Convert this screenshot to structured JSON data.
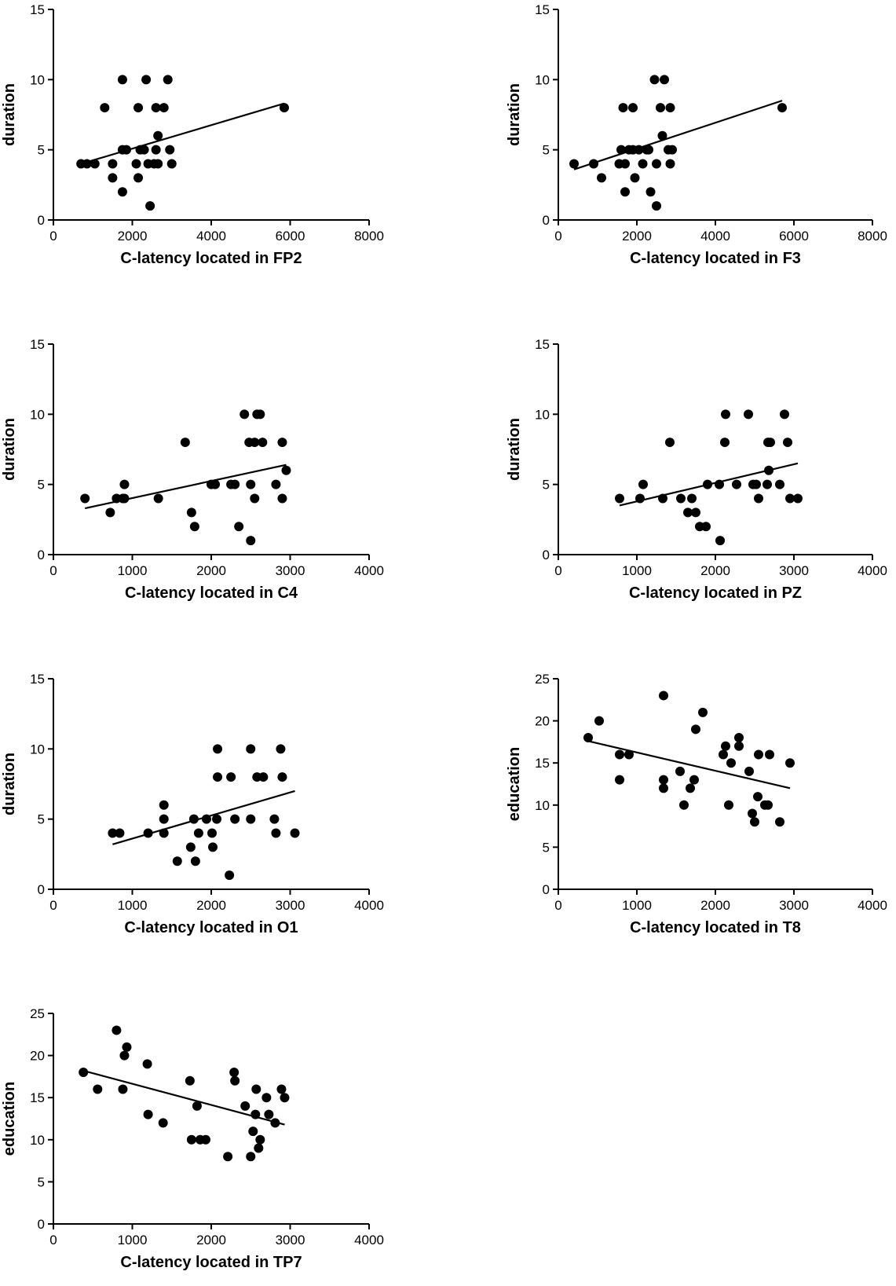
{
  "chart_data": [
    {
      "type": "scatter",
      "xlabel": "C-latency located in FP2",
      "ylabel": "duration",
      "xlim": [
        0,
        8000
      ],
      "ylim": [
        0,
        15
      ],
      "xticks": [
        0,
        2000,
        4000,
        6000,
        8000
      ],
      "yticks": [
        0,
        5,
        10,
        15
      ],
      "points": [
        [
          700,
          4
        ],
        [
          850,
          4
        ],
        [
          1050,
          4
        ],
        [
          1300,
          8
        ],
        [
          1500,
          4
        ],
        [
          1500,
          3
        ],
        [
          1750,
          10
        ],
        [
          1750,
          5
        ],
        [
          1850,
          5
        ],
        [
          1750,
          2
        ],
        [
          2100,
          4
        ],
        [
          2150,
          8
        ],
        [
          2150,
          3
        ],
        [
          2200,
          5
        ],
        [
          2350,
          10
        ],
        [
          2300,
          5
        ],
        [
          2400,
          4
        ],
        [
          2450,
          1
        ],
        [
          2550,
          4
        ],
        [
          2600,
          8
        ],
        [
          2650,
          6
        ],
        [
          2600,
          5
        ],
        [
          2650,
          4
        ],
        [
          2800,
          8
        ],
        [
          2900,
          10
        ],
        [
          2950,
          5
        ],
        [
          3000,
          4
        ],
        [
          5850,
          8
        ]
      ],
      "fit_line": [
        [
          700,
          4.0
        ],
        [
          5850,
          8.3
        ]
      ]
    },
    {
      "type": "scatter",
      "xlabel": "C-latency located in F3",
      "ylabel": "duration",
      "xlim": [
        0,
        8000
      ],
      "ylim": [
        0,
        15
      ],
      "xticks": [
        0,
        2000,
        4000,
        6000,
        8000
      ],
      "yticks": [
        0,
        5,
        10,
        15
      ],
      "points": [
        [
          400,
          4
        ],
        [
          900,
          4
        ],
        [
          1100,
          3
        ],
        [
          1550,
          4
        ],
        [
          1600,
          5
        ],
        [
          1650,
          8
        ],
        [
          1700,
          4
        ],
        [
          1700,
          2
        ],
        [
          1800,
          5
        ],
        [
          1900,
          8
        ],
        [
          1900,
          5
        ],
        [
          1950,
          3
        ],
        [
          2050,
          5
        ],
        [
          2150,
          4
        ],
        [
          2250,
          5
        ],
        [
          2300,
          5
        ],
        [
          2350,
          2
        ],
        [
          2450,
          10
        ],
        [
          2500,
          1
        ],
        [
          2500,
          4
        ],
        [
          2600,
          8
        ],
        [
          2650,
          6
        ],
        [
          2700,
          10
        ],
        [
          2800,
          5
        ],
        [
          2850,
          8
        ],
        [
          2850,
          4
        ],
        [
          2900,
          5
        ],
        [
          5700,
          8
        ]
      ],
      "fit_line": [
        [
          400,
          3.6
        ],
        [
          5700,
          8.5
        ]
      ]
    },
    {
      "type": "scatter",
      "xlabel": "C-latency located in C4",
      "ylabel": "duration",
      "xlim": [
        0,
        4000
      ],
      "ylim": [
        0,
        15
      ],
      "xticks": [
        0,
        1000,
        2000,
        3000,
        4000
      ],
      "yticks": [
        0,
        5,
        10,
        15
      ],
      "points": [
        [
          400,
          4
        ],
        [
          720,
          3
        ],
        [
          800,
          4
        ],
        [
          880,
          4
        ],
        [
          900,
          4
        ],
        [
          900,
          5
        ],
        [
          1330,
          4
        ],
        [
          1670,
          8
        ],
        [
          1750,
          3
        ],
        [
          1790,
          2
        ],
        [
          2000,
          5
        ],
        [
          2050,
          5
        ],
        [
          2250,
          5
        ],
        [
          2300,
          5
        ],
        [
          2350,
          2
        ],
        [
          2420,
          10
        ],
        [
          2480,
          8
        ],
        [
          2500,
          1
        ],
        [
          2500,
          5
        ],
        [
          2550,
          4
        ],
        [
          2550,
          8
        ],
        [
          2580,
          10
        ],
        [
          2620,
          10
        ],
        [
          2650,
          8
        ],
        [
          2820,
          5
        ],
        [
          2900,
          8
        ],
        [
          2900,
          4
        ],
        [
          2950,
          6
        ]
      ],
      "fit_line": [
        [
          400,
          3.3
        ],
        [
          2950,
          6.4
        ]
      ]
    },
    {
      "type": "scatter",
      "xlabel": "C-latency located in PZ",
      "ylabel": "duration",
      "xlim": [
        0,
        4000
      ],
      "ylim": [
        0,
        15
      ],
      "xticks": [
        0,
        1000,
        2000,
        3000,
        4000
      ],
      "yticks": [
        0,
        5,
        10,
        15
      ],
      "points": [
        [
          780,
          4
        ],
        [
          1040,
          4
        ],
        [
          1080,
          5
        ],
        [
          1330,
          4
        ],
        [
          1420,
          8
        ],
        [
          1560,
          4
        ],
        [
          1650,
          3
        ],
        [
          1700,
          4
        ],
        [
          1750,
          3
        ],
        [
          1800,
          2
        ],
        [
          1880,
          2
        ],
        [
          1900,
          5
        ],
        [
          2060,
          1
        ],
        [
          2050,
          5
        ],
        [
          2120,
          8
        ],
        [
          2130,
          10
        ],
        [
          2270,
          5
        ],
        [
          2420,
          10
        ],
        [
          2480,
          5
        ],
        [
          2520,
          5
        ],
        [
          2550,
          4
        ],
        [
          2660,
          5
        ],
        [
          2680,
          6
        ],
        [
          2670,
          8
        ],
        [
          2700,
          8
        ],
        [
          2820,
          5
        ],
        [
          2880,
          10
        ],
        [
          2920,
          8
        ],
        [
          2950,
          4
        ],
        [
          3050,
          4
        ]
      ],
      "fit_line": [
        [
          780,
          3.5
        ],
        [
          3050,
          6.5
        ]
      ]
    },
    {
      "type": "scatter",
      "xlabel": "C-latency located in O1",
      "ylabel": "duration",
      "xlim": [
        0,
        4000
      ],
      "ylim": [
        0,
        15
      ],
      "xticks": [
        0,
        1000,
        2000,
        3000,
        4000
      ],
      "yticks": [
        0,
        5,
        10,
        15
      ],
      "points": [
        [
          750,
          4
        ],
        [
          840,
          4
        ],
        [
          1200,
          4
        ],
        [
          1400,
          6
        ],
        [
          1400,
          5
        ],
        [
          1400,
          4
        ],
        [
          1570,
          2
        ],
        [
          1740,
          3
        ],
        [
          1780,
          5
        ],
        [
          1800,
          2
        ],
        [
          1840,
          4
        ],
        [
          1940,
          5
        ],
        [
          2010,
          4
        ],
        [
          2020,
          3
        ],
        [
          2070,
          5
        ],
        [
          2080,
          10
        ],
        [
          2080,
          8
        ],
        [
          2230,
          1
        ],
        [
          2250,
          8
        ],
        [
          2300,
          5
        ],
        [
          2500,
          10
        ],
        [
          2500,
          5
        ],
        [
          2580,
          8
        ],
        [
          2660,
          8
        ],
        [
          2800,
          5
        ],
        [
          2820,
          4
        ],
        [
          2880,
          10
        ],
        [
          2900,
          8
        ],
        [
          3060,
          4
        ]
      ],
      "fit_line": [
        [
          750,
          3.2
        ],
        [
          3060,
          7.0
        ]
      ]
    },
    {
      "type": "scatter",
      "xlabel": "C-latency located in T8",
      "ylabel": "education",
      "xlim": [
        0,
        4000
      ],
      "ylim": [
        0,
        25
      ],
      "xticks": [
        0,
        1000,
        2000,
        3000,
        4000
      ],
      "yticks": [
        0,
        5,
        10,
        15,
        20,
        25
      ],
      "points": [
        [
          380,
          18
        ],
        [
          520,
          20
        ],
        [
          780,
          16
        ],
        [
          780,
          13
        ],
        [
          900,
          16
        ],
        [
          1340,
          23
        ],
        [
          1340,
          13
        ],
        [
          1340,
          12
        ],
        [
          1550,
          14
        ],
        [
          1600,
          10
        ],
        [
          1680,
          12
        ],
        [
          1730,
          13
        ],
        [
          1750,
          19
        ],
        [
          1840,
          21
        ],
        [
          2100,
          16
        ],
        [
          2130,
          17
        ],
        [
          2170,
          10
        ],
        [
          2200,
          15
        ],
        [
          2300,
          17
        ],
        [
          2300,
          18
        ],
        [
          2430,
          14
        ],
        [
          2470,
          9
        ],
        [
          2500,
          8
        ],
        [
          2540,
          11
        ],
        [
          2550,
          16
        ],
        [
          2630,
          10
        ],
        [
          2670,
          10
        ],
        [
          2690,
          16
        ],
        [
          2820,
          8
        ],
        [
          2950,
          15
        ]
      ],
      "fit_line": [
        [
          380,
          17.6
        ],
        [
          2950,
          12.0
        ]
      ]
    },
    {
      "type": "scatter",
      "xlabel": "C-latency located in TP7",
      "ylabel": "education",
      "xlim": [
        0,
        4000
      ],
      "ylim": [
        0,
        25
      ],
      "xticks": [
        0,
        1000,
        2000,
        3000,
        4000
      ],
      "yticks": [
        0,
        5,
        10,
        15,
        20,
        25
      ],
      "points": [
        [
          380,
          18
        ],
        [
          560,
          16
        ],
        [
          800,
          23
        ],
        [
          880,
          16
        ],
        [
          900,
          20
        ],
        [
          930,
          21
        ],
        [
          1190,
          19
        ],
        [
          1200,
          13
        ],
        [
          1390,
          12
        ],
        [
          1730,
          17
        ],
        [
          1750,
          10
        ],
        [
          1820,
          14
        ],
        [
          1860,
          10
        ],
        [
          1930,
          10
        ],
        [
          2210,
          8
        ],
        [
          2290,
          18
        ],
        [
          2300,
          17
        ],
        [
          2430,
          14
        ],
        [
          2500,
          8
        ],
        [
          2530,
          11
        ],
        [
          2560,
          13
        ],
        [
          2570,
          16
        ],
        [
          2600,
          9
        ],
        [
          2620,
          10
        ],
        [
          2700,
          15
        ],
        [
          2730,
          13
        ],
        [
          2810,
          12
        ],
        [
          2890,
          16
        ],
        [
          2930,
          15
        ]
      ],
      "fit_line": [
        [
          380,
          18.2
        ],
        [
          2930,
          11.8
        ]
      ]
    }
  ]
}
